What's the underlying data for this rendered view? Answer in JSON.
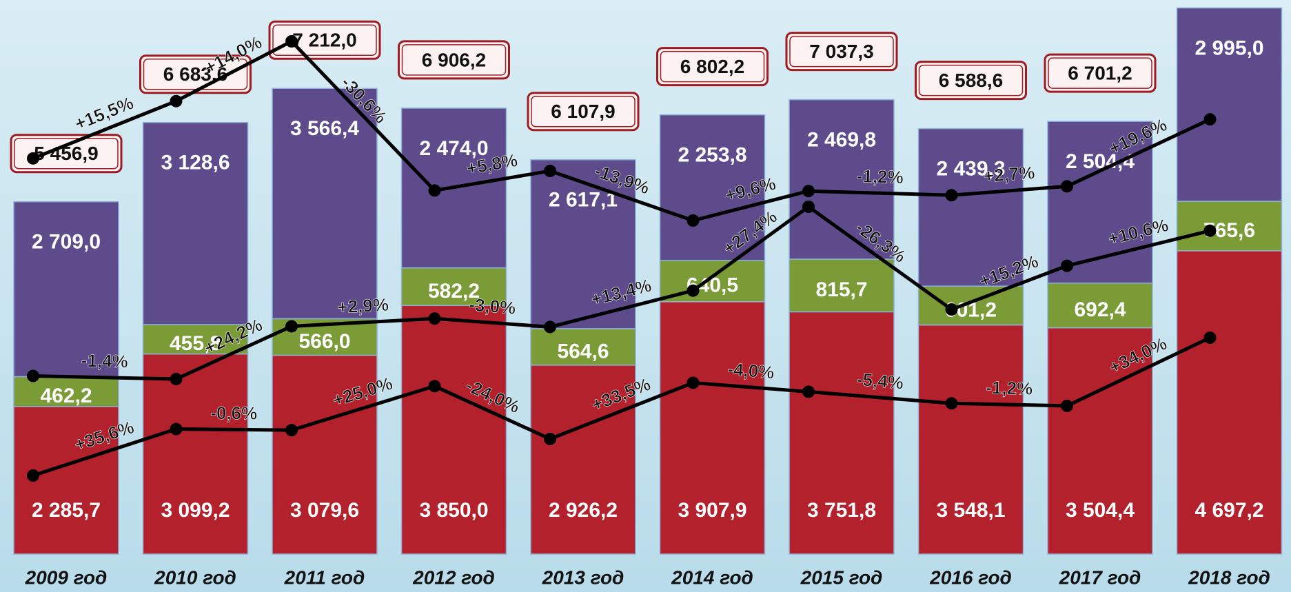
{
  "chart_data": {
    "type": "stacked-bar",
    "categories": [
      "2009 год",
      "2010 год",
      "2011 год",
      "2012 год",
      "2013 год",
      "2014 год",
      "2015 год",
      "2016 год",
      "2017 год",
      "2018 год"
    ],
    "series": [
      {
        "color": "#b3212c",
        "values": [
          2285.7,
          3099.2,
          3079.6,
          3850.0,
          2926.2,
          3907.9,
          3751.8,
          3548.1,
          3504.4,
          4697.2
        ],
        "value_labels": [
          "2 285,7",
          "3 099,2",
          "3 079,6",
          "3 850,0",
          "2 926,2",
          "3 907,9",
          "3 751,8",
          "3 548,1",
          "3 504,4",
          "4 697,2"
        ],
        "change_labels": [
          "+35,6%",
          "-0,6%",
          "+25,0%",
          "-24,0%",
          "+33,5%",
          "-4,0%",
          "-5,4%",
          "-1,2%",
          "+34,0%"
        ]
      },
      {
        "color": "#7b9b36",
        "values": [
          462.2,
          455.8,
          566.0,
          582.2,
          564.6,
          640.5,
          815.7,
          601.2,
          692.4,
          765.6
        ],
        "value_labels": [
          "462,2",
          "455,8",
          "566,0",
          "582,2",
          "564,6",
          "640,5",
          "815,7",
          "601,2",
          "692,4",
          "765,6"
        ],
        "change_labels": [
          "-1,4%",
          "+24,2%",
          "+2,9%",
          "-3,0%",
          "+13,4%",
          "+27,4%",
          "-26,3%",
          "+15,2%",
          "+10,6%"
        ]
      },
      {
        "color": "#5d4b8c",
        "values": [
          2709.0,
          3128.6,
          3566.4,
          2474.0,
          2617.1,
          2253.8,
          2469.8,
          2439.3,
          2504.4,
          2995.0
        ],
        "value_labels": [
          "2 709,0",
          "3 128,6",
          "3 566,4",
          "2 474,0",
          "2 617,1",
          "2 253,8",
          "2 469,8",
          "2 439,3",
          "2 504,4",
          "2 995,0"
        ],
        "change_labels": [
          "+15,5%",
          "+14,0%",
          "-30,6%",
          "+5,8%",
          "-13,9%",
          "+9,6%",
          "-1,2%",
          "+2,7%",
          "+19,6%"
        ]
      }
    ],
    "totals": {
      "values": [
        5456.9,
        6683.6,
        7212.0,
        6906.2,
        6107.9,
        6802.2,
        7037.3,
        6588.6,
        6701.2,
        null
      ],
      "value_labels": [
        "5 456,9",
        "6 683,6",
        "7 212,0",
        "6 906,2",
        "6 107,9",
        "6 802,2",
        "7 037,3",
        "6 588,6",
        "6 701,2",
        null
      ]
    }
  }
}
